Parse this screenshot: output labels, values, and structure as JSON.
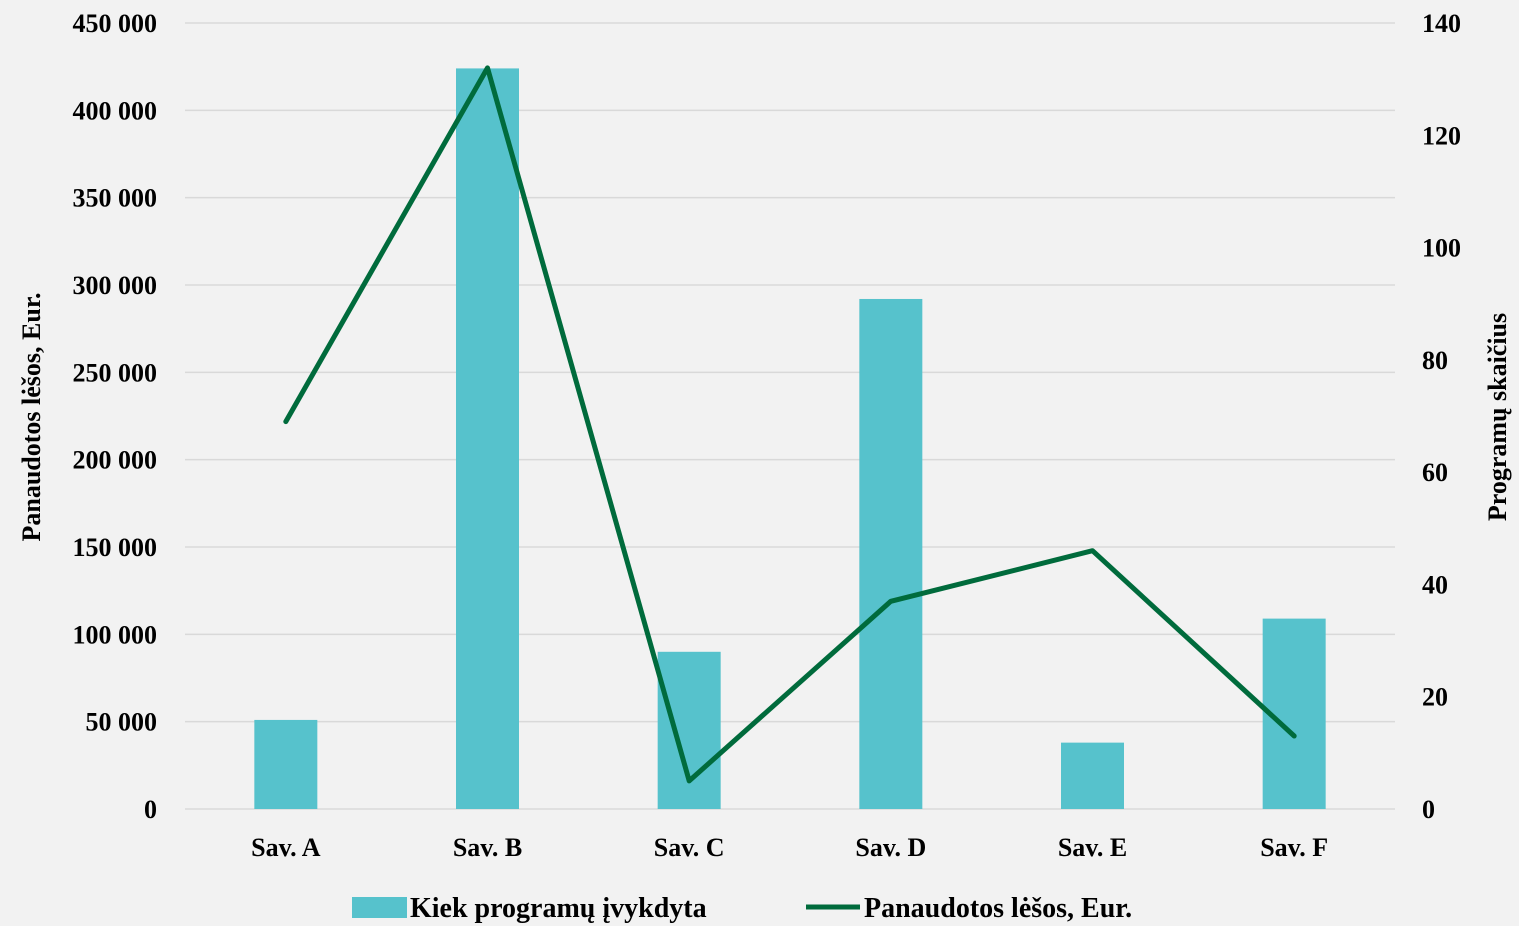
{
  "chart_data": {
    "type": "bar",
    "categories": [
      "Sav. A",
      "Sav. B",
      "Sav. C",
      "Sav. D",
      "Sav. E",
      "Sav. F"
    ],
    "series": [
      {
        "name": "Kiek programų įvykdyta",
        "type": "bar",
        "axis": "left",
        "values": [
          51000,
          424000,
          90000,
          292000,
          38000,
          109000
        ]
      },
      {
        "name": "Panaudotos lėšos, Eur.",
        "type": "line",
        "axis": "right",
        "values": [
          69,
          132,
          5,
          37,
          46,
          13
        ]
      }
    ],
    "ylabel": "Panaudotos lėšos, Eur.",
    "y2label": "Programų skaičius",
    "ylim": [
      0,
      450000
    ],
    "y_ticks": [
      "0",
      "50 000",
      "100 000",
      "150 000",
      "200 000",
      "250 000",
      "300 000",
      "350 000",
      "400 000",
      "450 000"
    ],
    "y2lim": [
      0,
      140
    ],
    "y2_ticks": [
      "0",
      "20",
      "40",
      "60",
      "80",
      "100",
      "120",
      "140"
    ],
    "grid": true,
    "legend": "bottom",
    "colors": {
      "bar": "#56c2cc",
      "line": "#006b3c",
      "grid": "#d9d9d9",
      "background": "#f2f2f2"
    }
  }
}
